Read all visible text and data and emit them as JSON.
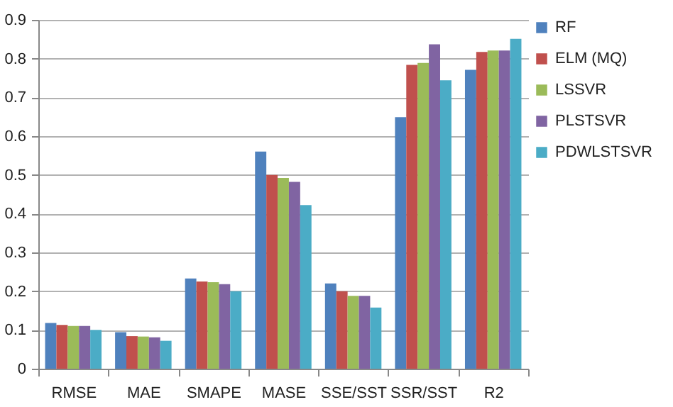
{
  "chart_data": {
    "type": "bar",
    "categories": [
      "RMSE",
      "MAE",
      "SMAPE",
      "MASE",
      "SSE/SST",
      "SSR/SST",
      "R2"
    ],
    "series": [
      {
        "name": "RF",
        "color": "#4f81bd",
        "values": [
          0.118,
          0.094,
          0.233,
          0.56,
          0.22,
          0.649,
          0.771
        ]
      },
      {
        "name": "ELM (MQ)",
        "color": "#c0504d",
        "values": [
          0.113,
          0.084,
          0.225,
          0.5,
          0.2,
          0.784,
          0.817
        ]
      },
      {
        "name": "LSSVR",
        "color": "#9bbb59",
        "values": [
          0.11,
          0.083,
          0.223,
          0.492,
          0.188,
          0.789,
          0.821
        ]
      },
      {
        "name": "PLSTSVR",
        "color": "#8064a2",
        "values": [
          0.11,
          0.081,
          0.218,
          0.482,
          0.188,
          0.837,
          0.821
        ]
      },
      {
        "name": "PDWLSTSVR",
        "color": "#4bacc6",
        "values": [
          0.1,
          0.072,
          0.2,
          0.422,
          0.158,
          0.744,
          0.851
        ]
      }
    ],
    "ylim": [
      0,
      0.9
    ],
    "yticks": [
      0,
      0.1,
      0.2,
      0.3,
      0.4,
      0.5,
      0.6,
      0.7,
      0.8,
      0.9
    ],
    "grid": "y",
    "legend": "right"
  }
}
